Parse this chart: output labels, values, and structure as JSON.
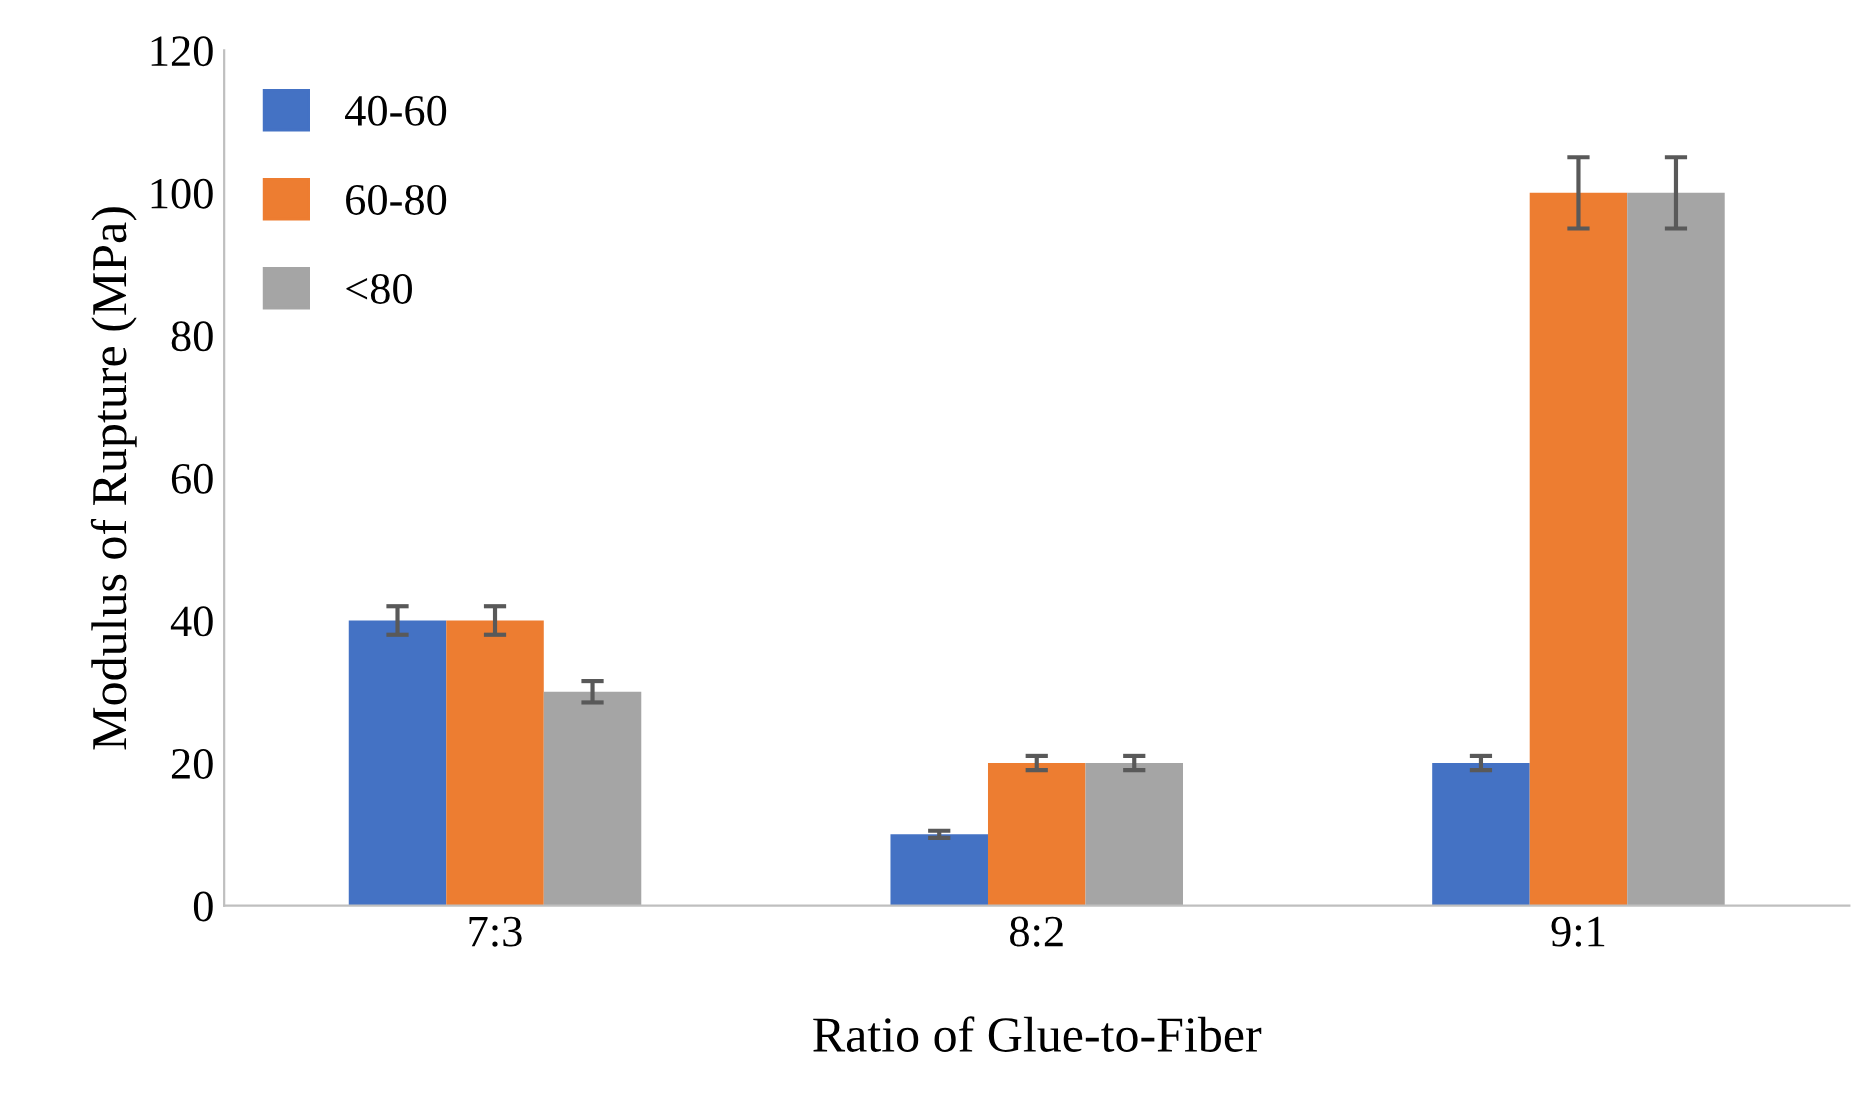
{
  "chart_data": {
    "type": "bar",
    "xlabel": "Ratio of Glue-to-Fiber",
    "ylabel": "Modulus of Rupture (MPa)",
    "categories": [
      "7:3",
      "8:2",
      "9:1"
    ],
    "series": [
      {
        "name": "40-60",
        "color": "#4472c4",
        "values": [
          40,
          10,
          20
        ],
        "errors": [
          2,
          0.5,
          1
        ]
      },
      {
        "name": "60-80",
        "color": "#ed7d31",
        "values": [
          40,
          20,
          100
        ],
        "errors": [
          2,
          1,
          5
        ]
      },
      {
        "name": "<80",
        "color": "#a5a5a5",
        "values": [
          30,
          20,
          100
        ],
        "errors": [
          1.5,
          1,
          5
        ]
      }
    ],
    "ylim": [
      0,
      120
    ],
    "yticks": [
      0,
      20,
      40,
      60,
      80,
      100,
      120
    ],
    "grid": false,
    "legend": "top left"
  }
}
